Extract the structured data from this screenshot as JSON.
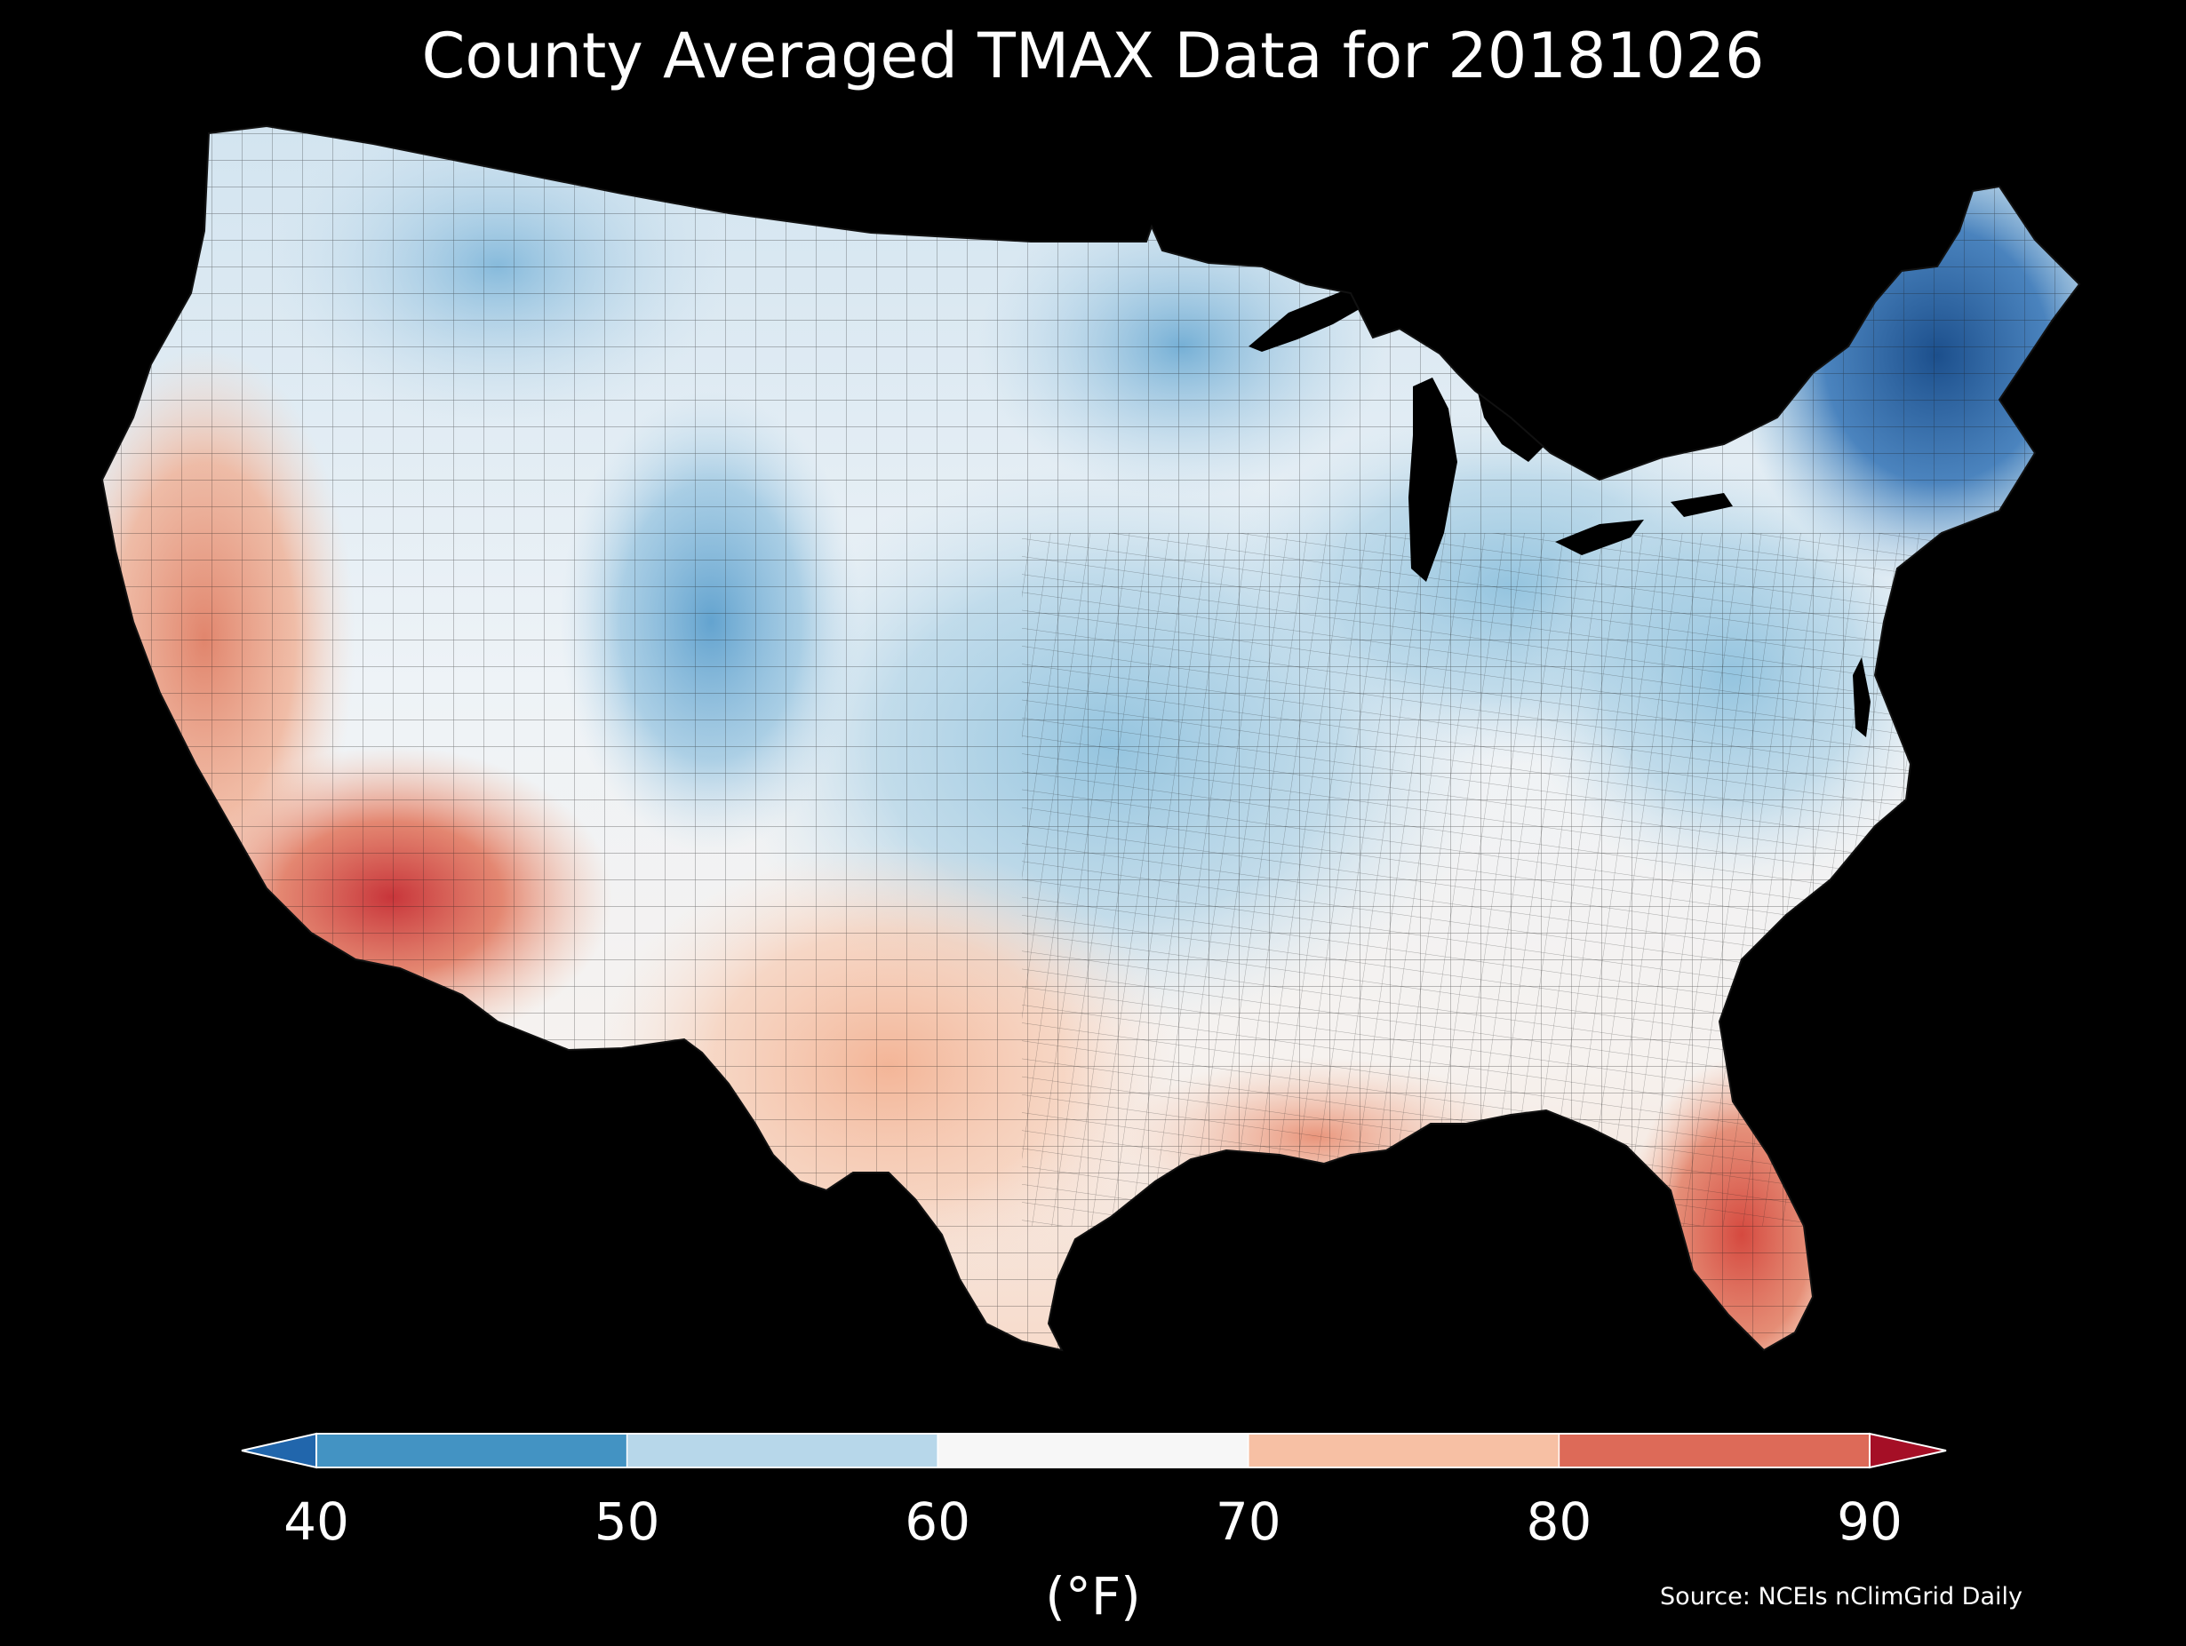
{
  "title": "County Averaged TMAX Data for 20181026",
  "source": "Source: NCEIs nClimGrid Daily",
  "colorbar": {
    "ticks": [
      "40",
      "50",
      "60",
      "70",
      "80",
      "90"
    ],
    "unit": "(°F)",
    "bins": [
      {
        "range": [
          40,
          50
        ],
        "color": "#4393c3"
      },
      {
        "range": [
          50,
          60
        ],
        "color": "#b7d7ea"
      },
      {
        "range": [
          60,
          70
        ],
        "color": "#f7f7f7"
      },
      {
        "range": [
          70,
          80
        ],
        "color": "#f7c0a4"
      },
      {
        "range": [
          80,
          90
        ],
        "color": "#dd6a58"
      }
    ],
    "extend_low_color": "#2166ac",
    "extend_high_color": "#a50f26"
  },
  "map": {
    "region": "CONUS",
    "background": "#000000",
    "regions": [
      {
        "id": "pacific-northwest",
        "tmax_f": 55
      },
      {
        "id": "northern-rockies",
        "tmax_f": 52
      },
      {
        "id": "northern-plains",
        "tmax_f": 59
      },
      {
        "id": "upper-midwest",
        "tmax_f": 52
      },
      {
        "id": "central-plains",
        "tmax_f": 54
      },
      {
        "id": "great-lakes",
        "tmax_f": 53
      },
      {
        "id": "northeast",
        "tmax_f": 45
      },
      {
        "id": "mid-atlantic",
        "tmax_f": 56
      },
      {
        "id": "southeast",
        "tmax_f": 63
      },
      {
        "id": "california-coast",
        "tmax_f": 77
      },
      {
        "id": "great-basin",
        "tmax_f": 65
      },
      {
        "id": "central-rockies",
        "tmax_f": 52
      },
      {
        "id": "desert-southwest",
        "tmax_f": 80
      },
      {
        "id": "southern-plains",
        "tmax_f": 70
      },
      {
        "id": "texas",
        "tmax_f": 71
      },
      {
        "id": "gulf-coast",
        "tmax_f": 74
      },
      {
        "id": "florida",
        "tmax_f": 83
      }
    ]
  }
}
